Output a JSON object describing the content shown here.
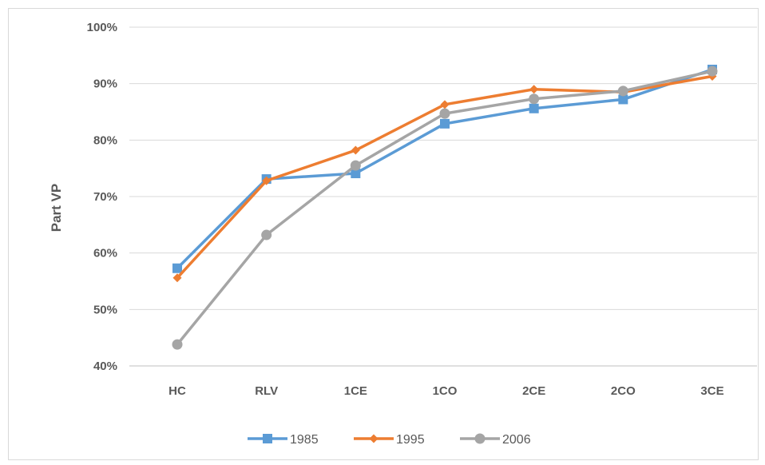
{
  "chart_data": {
    "type": "line",
    "title": "",
    "xlabel": "",
    "ylabel": "Part VP",
    "categories": [
      "HC",
      "RLV",
      "1CE",
      "1CO",
      "2CE",
      "2CO",
      "3CE"
    ],
    "ylim": [
      0.4,
      1.0
    ],
    "yticks": [
      "40%",
      "50%",
      "60%",
      "70%",
      "80%",
      "90%",
      "100%"
    ],
    "grid": "horizontal",
    "legend_position": "bottom",
    "series": [
      {
        "name": "1985",
        "color": "#5b9bd5",
        "marker": "square",
        "values": [
          0.573,
          0.731,
          0.741,
          0.829,
          0.856,
          0.872,
          0.925
        ]
      },
      {
        "name": "1995",
        "color": "#ed7d31",
        "marker": "diamond",
        "values": [
          0.556,
          0.728,
          0.782,
          0.863,
          0.89,
          0.885,
          0.913
        ]
      },
      {
        "name": "2006",
        "color": "#a5a5a5",
        "marker": "circle",
        "values": [
          0.438,
          0.632,
          0.755,
          0.847,
          0.873,
          0.887,
          0.922
        ]
      }
    ]
  }
}
